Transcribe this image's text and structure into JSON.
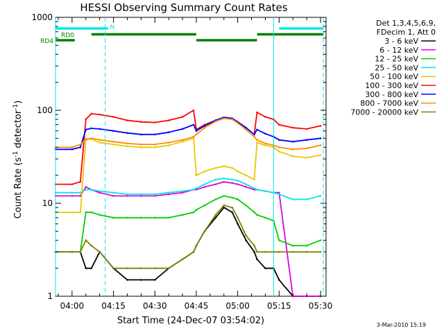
{
  "chart_data": {
    "type": "line",
    "title": "HESSI Observing Summary Count Rates",
    "xlabel": "Start Time (24-Dec-07 03:54:02)",
    "ylabel": "Count Rate (s^-1 detector^-1)",
    "y_scale": "log",
    "ylim": [
      1,
      1000
    ],
    "xlim": [
      "03:54",
      "05:32"
    ],
    "x_ticks": [
      "04:00",
      "04:15",
      "04:30",
      "04:45",
      "05:00",
      "05:15",
      "05:30"
    ],
    "y_ticks": [
      "1",
      "10",
      "100",
      "1000"
    ],
    "grid": false,
    "legend_position": "right",
    "legend_header": [
      "Det 1,3,4,5,6,9,",
      "FDecim 1, Att 0"
    ],
    "x": [
      "03:54",
      "04:00",
      "04:03",
      "04:05",
      "04:07",
      "04:10",
      "04:15",
      "04:20",
      "04:25",
      "04:30",
      "04:35",
      "04:40",
      "04:44",
      "04:45",
      "04:48",
      "04:52",
      "04:55",
      "04:58",
      "05:00",
      "05:03",
      "05:06",
      "05:07",
      "05:10",
      "05:13",
      "05:15",
      "05:20",
      "05:25",
      "05:30"
    ],
    "series": [
      {
        "name": "3 - 6 keV",
        "color": "#000000",
        "values": [
          3,
          3,
          3,
          2,
          2,
          3,
          2,
          1.5,
          1.5,
          1.5,
          2,
          2.5,
          3,
          3.5,
          5,
          7,
          9,
          8,
          6,
          4,
          3,
          2.5,
          2,
          2,
          1.5,
          1,
          1,
          1
        ]
      },
      {
        "name": "6 - 12 keV",
        "color": "#e000e0",
        "values": [
          12,
          12,
          12,
          15,
          14,
          13,
          12,
          12,
          12,
          12,
          12.5,
          13,
          14,
          14,
          15,
          16,
          17,
          16.5,
          16,
          15,
          14,
          14,
          13.5,
          13,
          13,
          1,
          1,
          1
        ]
      },
      {
        "name": "12 - 25 keV",
        "color": "#00d000",
        "values": [
          3,
          3,
          3,
          8,
          8,
          7.5,
          7,
          7,
          7,
          7,
          7,
          7.5,
          8,
          8.5,
          9.5,
          11,
          12,
          11.5,
          11,
          9.5,
          8,
          7.5,
          7,
          6.5,
          4,
          3.5,
          3.5,
          4
        ]
      },
      {
        "name": "25 - 50 keV",
        "color": "#00e8e8",
        "values": [
          13,
          13,
          13,
          14,
          14,
          13.5,
          13,
          12.5,
          12.5,
          12.5,
          13,
          13.5,
          14,
          14.5,
          16,
          18,
          18.5,
          18,
          17.5,
          16,
          14.5,
          14,
          13.5,
          13,
          12.5,
          11,
          11,
          12
        ]
      },
      {
        "name": "50 - 100 keV",
        "color": "#e8c800",
        "values": [
          8,
          8,
          8,
          50,
          49,
          45,
          43,
          41,
          40,
          40,
          42,
          46,
          50,
          20,
          22,
          24,
          25,
          24,
          22,
          20,
          18,
          45,
          42,
          40,
          36,
          32,
          31,
          33
        ]
      },
      {
        "name": "100 - 300 keV",
        "color": "#ff0000",
        "values": [
          16,
          16,
          17,
          80,
          92,
          90,
          85,
          78,
          75,
          74,
          78,
          85,
          100,
          62,
          70,
          78,
          82,
          80,
          75,
          65,
          55,
          95,
          85,
          80,
          70,
          65,
          63,
          68
        ]
      },
      {
        "name": "300 - 800 keV",
        "color": "#0000ff",
        "values": [
          38,
          38,
          40,
          62,
          64,
          63,
          60,
          57,
          55,
          55,
          58,
          63,
          70,
          60,
          68,
          78,
          84,
          82,
          75,
          65,
          55,
          62,
          56,
          52,
          48,
          46,
          48,
          50
        ]
      },
      {
        "name": "800 - 7000 keV",
        "color": "#ff8c00",
        "values": [
          40,
          40,
          43,
          48,
          50,
          48,
          46,
          44,
          43,
          43,
          45,
          48,
          52,
          55,
          65,
          76,
          82,
          80,
          73,
          62,
          52,
          48,
          44,
          42,
          40,
          38,
          39,
          42
        ]
      },
      {
        "name": "7000 - 20000 keV",
        "color": "#808000",
        "values": [
          3,
          3,
          3,
          4,
          3.5,
          3,
          2,
          2,
          2,
          2,
          2,
          2.5,
          3,
          3.5,
          5,
          7.5,
          9.5,
          9,
          7,
          4.5,
          3.5,
          3,
          3,
          3,
          3,
          3,
          3,
          3
        ]
      }
    ],
    "annotations": {
      "flags": [
        {
          "label": "N",
          "color": "#00e8e8",
          "segments": [
            [
              "03:54",
              "04:13"
            ],
            [
              "05:15",
              "05:31"
            ]
          ]
        },
        {
          "label": "RD0",
          "color": "#008000",
          "segments": [
            [
              "04:07",
              "04:45"
            ],
            [
              "05:07",
              "05:31"
            ]
          ]
        },
        {
          "label": "RD4",
          "color": "#008000",
          "segments": [
            [
              "03:54",
              "04:01"
            ],
            [
              "04:45",
              "05:07"
            ]
          ]
        }
      ],
      "dashed_vlines": [
        "04:12",
        "05:31"
      ],
      "solid_vlines": [
        "03:54",
        "05:13"
      ]
    },
    "timestamp": "3-Mar-2010 15:19"
  }
}
